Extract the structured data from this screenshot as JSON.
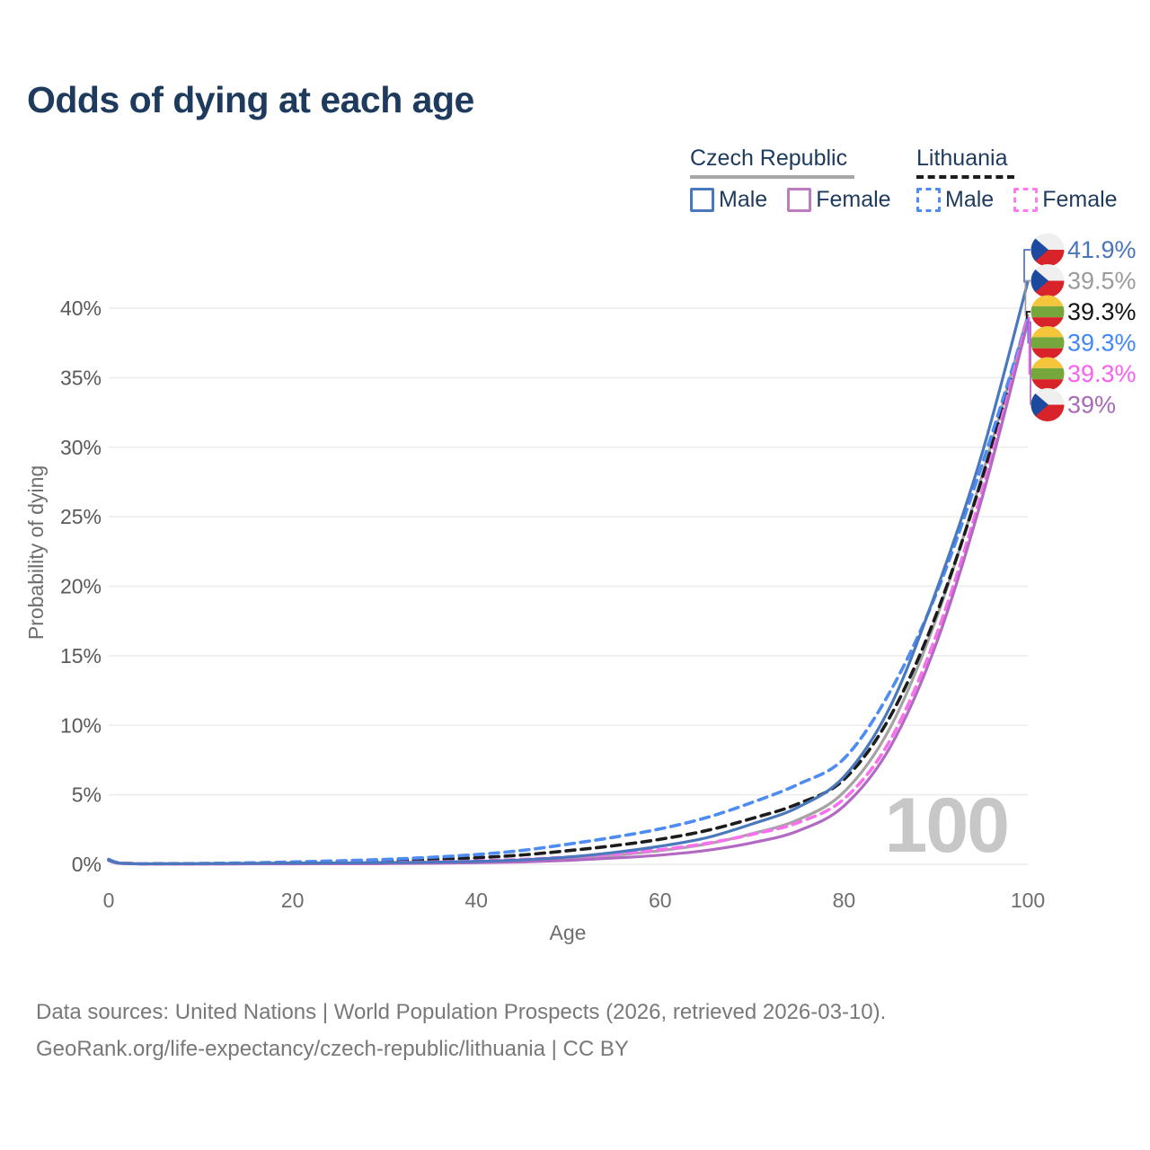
{
  "title": "Odds of dying at each age",
  "legend": {
    "groups": [
      {
        "name": "Czech Republic",
        "line_style": "solid",
        "underline_color": "#a6a6a6",
        "items": [
          {
            "label": "Male",
            "color": "#4a78bc"
          },
          {
            "label": "Female",
            "color": "#bb7cc0"
          }
        ]
      },
      {
        "name": "Lithuania",
        "line_style": "dashed",
        "underline_color": "#1c1c1c",
        "items": [
          {
            "label": "Male",
            "color": "#4d8cf2"
          },
          {
            "label": "Female",
            "color": "#fc7cf0"
          }
        ]
      }
    ]
  },
  "chart_data": {
    "type": "line",
    "title": "Odds of dying at each age",
    "xlabel": "Age",
    "ylabel": "Probability of dying",
    "xlim": [
      0,
      100
    ],
    "ylim_pct": [
      0,
      43.5
    ],
    "x_ticks": [
      0,
      20,
      40,
      60,
      80,
      100
    ],
    "y_ticks": [
      "0%",
      "5%",
      "10%",
      "15%",
      "20%",
      "25%",
      "30%",
      "35%",
      "40%"
    ],
    "grid": "horizontal-only",
    "legend_position": "top-right",
    "watermark": "100",
    "x": [
      0,
      1,
      3,
      5,
      10,
      15,
      20,
      25,
      30,
      35,
      40,
      45,
      50,
      55,
      60,
      65,
      70,
      75,
      80,
      85,
      90,
      95,
      100
    ],
    "series": [
      {
        "name": "Czech Republic Male",
        "color": "#4a78bc",
        "dashed": false,
        "values": [
          0.32,
          0.1,
          0.04,
          0.04,
          0.05,
          0.07,
          0.09,
          0.1,
          0.12,
          0.15,
          0.21,
          0.32,
          0.52,
          0.85,
          1.3,
          1.9,
          2.9,
          4.1,
          6.3,
          11.3,
          19.6,
          29.5,
          41.9
        ]
      },
      {
        "name": "Czech Republic Female",
        "color": "#b269c2",
        "dashed": false,
        "values": [
          0.26,
          0.08,
          0.03,
          0.02,
          0.02,
          0.03,
          0.03,
          0.04,
          0.05,
          0.07,
          0.11,
          0.17,
          0.28,
          0.45,
          0.66,
          1.0,
          1.55,
          2.4,
          4.2,
          8.4,
          15.8,
          26.3,
          39.0
        ]
      },
      {
        "name": "Czech Republic Both sexes",
        "color": "#a3a3a3",
        "dashed": false,
        "values": [
          0.29,
          0.09,
          0.035,
          0.03,
          0.035,
          0.05,
          0.06,
          0.07,
          0.085,
          0.11,
          0.16,
          0.25,
          0.4,
          0.65,
          0.98,
          1.45,
          2.2,
          3.2,
          5.2,
          9.8,
          17.6,
          27.9,
          39.5
        ]
      },
      {
        "name": "Lithuania Male",
        "color": "#4d8cf2",
        "dashed": true,
        "values": [
          0.36,
          0.12,
          0.05,
          0.05,
          0.06,
          0.1,
          0.17,
          0.25,
          0.35,
          0.5,
          0.7,
          1.0,
          1.45,
          1.95,
          2.55,
          3.35,
          4.45,
          5.75,
          7.6,
          12.4,
          19.4,
          28.7,
          39.3
        ]
      },
      {
        "name": "Lithuania Female",
        "color": "#f970ee",
        "dashed": true,
        "values": [
          0.3,
          0.1,
          0.04,
          0.03,
          0.03,
          0.05,
          0.07,
          0.09,
          0.12,
          0.17,
          0.24,
          0.35,
          0.52,
          0.73,
          1.05,
          1.5,
          2.15,
          3.0,
          4.7,
          8.9,
          16.4,
          26.8,
          39.3
        ]
      },
      {
        "name": "Lithuania Both sexes",
        "color": "#1c1c1c",
        "dashed": true,
        "values": [
          0.33,
          0.11,
          0.045,
          0.04,
          0.045,
          0.08,
          0.12,
          0.17,
          0.24,
          0.34,
          0.47,
          0.67,
          0.98,
          1.34,
          1.8,
          2.42,
          3.3,
          4.35,
          6.1,
          10.6,
          17.9,
          27.7,
          39.3
        ]
      }
    ],
    "end_labels": [
      {
        "text": "41.9%",
        "color": "#4a74bc",
        "flag": "cz",
        "series_index": 0
      },
      {
        "text": "39.5%",
        "color": "#9b9b9b",
        "flag": "cz",
        "series_index": 2
      },
      {
        "text": "39.3%",
        "color": "#141414",
        "flag": "lt",
        "series_index": 5
      },
      {
        "text": "39.3%",
        "color": "#4287f5",
        "flag": "lt",
        "series_index": 3
      },
      {
        "text": "39.3%",
        "color": "#fb5fee",
        "flag": "lt",
        "series_index": 4
      },
      {
        "text": "39%",
        "color": "#a869b8",
        "flag": "cz",
        "series_index": 1
      }
    ],
    "flag_colors": {
      "cz": {
        "white": "#efefef",
        "red": "#d8232a",
        "blue": "#1b4a9e"
      },
      "lt": {
        "yellow": "#f5c63c",
        "green": "#76a73c",
        "red": "#d8232a"
      }
    }
  },
  "footer": {
    "line1": "Data sources: United Nations | World Population Prospects (2026, retrieved 2026-03-10).",
    "line2": "GeoRank.org/life-expectancy/czech-republic/lithuania | CC BY"
  }
}
